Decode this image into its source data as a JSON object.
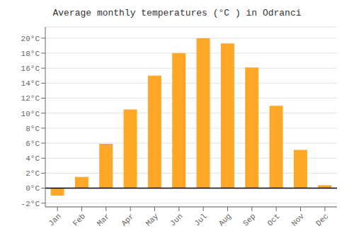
{
  "chart_data": {
    "type": "bar",
    "title": "Average monthly temperatures (°C ) in Odranci",
    "categories": [
      "Jan",
      "Feb",
      "Mar",
      "Apr",
      "May",
      "Jun",
      "Jul",
      "Aug",
      "Sep",
      "Oct",
      "Nov",
      "Dec"
    ],
    "values": [
      -1.0,
      1.5,
      5.9,
      10.5,
      15.0,
      18.0,
      20.0,
      19.3,
      16.1,
      11.0,
      5.1,
      0.4
    ],
    "color": "#FFA726",
    "ylim": [
      -2.5,
      21.5
    ],
    "yticks": [
      {
        "value": -2,
        "label": "-2°C"
      },
      {
        "value": 0,
        "label": "0°C"
      },
      {
        "value": 2,
        "label": "2°C"
      },
      {
        "value": 4,
        "label": "4°C"
      },
      {
        "value": 6,
        "label": "6°C"
      },
      {
        "value": 8,
        "label": "8°C"
      },
      {
        "value": 10,
        "label": "10°C"
      },
      {
        "value": 12,
        "label": "12°C"
      },
      {
        "value": 14,
        "label": "14°C"
      },
      {
        "value": 16,
        "label": "16°C"
      },
      {
        "value": 18,
        "label": "18°C"
      },
      {
        "value": 20,
        "label": "20°C"
      }
    ],
    "grid": true
  }
}
